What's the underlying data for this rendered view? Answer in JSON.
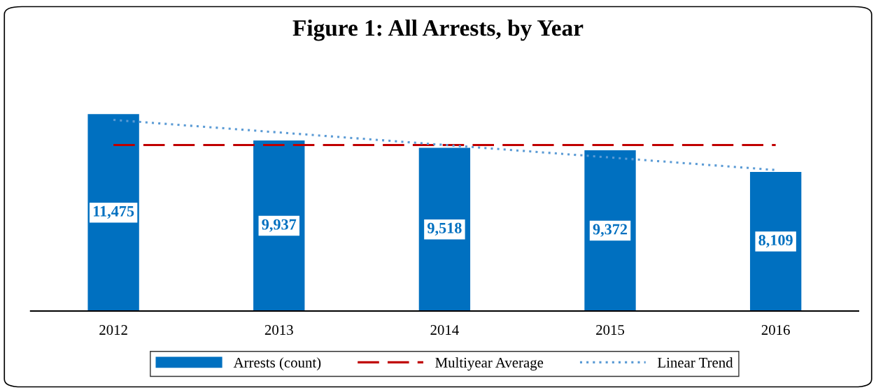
{
  "chart_data": {
    "type": "bar",
    "title": "Figure 1: All Arrests, by Year",
    "categories": [
      "2012",
      "2013",
      "2014",
      "2015",
      "2016"
    ],
    "series": [
      {
        "name": "Arrests (count)",
        "color": "#0070c0",
        "values": [
          11475,
          9937,
          9518,
          9372,
          8109
        ],
        "value_labels": [
          "11,475",
          "9,937",
          "9,518",
          "9,372",
          "8,109"
        ]
      },
      {
        "name": "Multiyear Average",
        "type": "line",
        "color": "#c00000",
        "line_style": "dashed",
        "values": [
          9680,
          9680,
          9680,
          9680,
          9680
        ]
      },
      {
        "name": "Linear Trend",
        "type": "line",
        "color": "#5b9bd5",
        "line_style": "dotted",
        "values": [
          11140,
          10410,
          9680,
          8950,
          8220
        ]
      }
    ],
    "tick_labels": "x",
    "legend": "bottom"
  }
}
